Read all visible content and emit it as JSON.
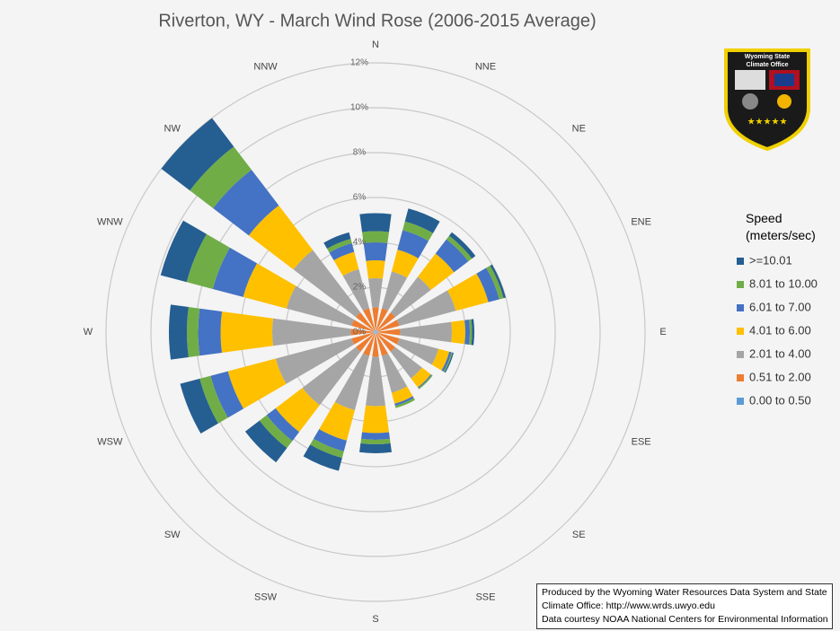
{
  "chart_data": {
    "type": "windrose",
    "title": "Riverton, WY - March Wind Rose (2006-2015 Average)",
    "categories": [
      "N",
      "NNE",
      "NE",
      "ENE",
      "E",
      "ESE",
      "SE",
      "SSE",
      "S",
      "SSW",
      "SW",
      "WSW",
      "W",
      "WNW",
      "NW",
      "NNW"
    ],
    "legend_title": "Speed (meters/sec)",
    "series": [
      {
        "name": "0.00 to 0.50",
        "color": "#5b9bd5",
        "values": [
          0.1,
          0.1,
          0.1,
          0.1,
          0.1,
          0.1,
          0.1,
          0.1,
          0.1,
          0.1,
          0.1,
          0.1,
          0.1,
          0.1,
          0.1,
          0.1
        ]
      },
      {
        "name": "0.51 to 2.00",
        "color": "#ed7d31",
        "values": [
          1.0,
          1.0,
          1.0,
          1.0,
          1.0,
          1.0,
          1.0,
          1.0,
          1.0,
          1.0,
          1.0,
          1.0,
          1.0,
          1.0,
          1.0,
          1.0
        ]
      },
      {
        "name": "2.01 to 4.00",
        "color": "#a5a5a5",
        "values": [
          1.3,
          1.7,
          2.0,
          2.6,
          2.3,
          1.8,
          1.5,
          1.7,
          2.2,
          2.5,
          3.0,
          3.5,
          3.5,
          3.0,
          3.5,
          1.8
        ]
      },
      {
        "name": "4.01 to 6.00",
        "color": "#ffc000",
        "values": [
          0.8,
          1.0,
          1.3,
          1.5,
          0.6,
          0.5,
          0.5,
          0.5,
          1.2,
          1.4,
          1.5,
          2.2,
          2.3,
          2.0,
          2.5,
          0.8
        ]
      },
      {
        "name": "6.01 to 7.00",
        "color": "#4472c4",
        "values": [
          0.8,
          0.9,
          0.8,
          0.5,
          0.2,
          0.1,
          0.05,
          0.1,
          0.3,
          0.5,
          0.5,
          0.8,
          1.0,
          1.4,
          2.0,
          0.4
        ]
      },
      {
        "name": "8.01 to 10.00",
        "color": "#70ad47",
        "values": [
          0.5,
          0.4,
          0.2,
          0.2,
          0.1,
          0.05,
          0.05,
          0.1,
          0.2,
          0.3,
          0.4,
          0.5,
          0.5,
          1.2,
          1.3,
          0.2
        ]
      },
      {
        "name": ">=10.01",
        "color": "#255e91",
        "values": [
          0.8,
          0.6,
          0.2,
          0.1,
          0.1,
          0.05,
          0.0,
          0.0,
          0.4,
          0.6,
          0.8,
          0.9,
          0.8,
          1.2,
          1.6,
          0.3
        ]
      }
    ],
    "ylim": [
      0,
      12
    ],
    "yticks": [
      {
        "value": 0,
        "label": "0%"
      },
      {
        "value": 2,
        "label": "2%"
      },
      {
        "value": 4,
        "label": "4%"
      },
      {
        "value": 6,
        "label": "6%"
      },
      {
        "value": 8,
        "label": "8%"
      },
      {
        "value": 10,
        "label": "10%"
      },
      {
        "value": 12,
        "label": "12%"
      }
    ],
    "grid": true,
    "legend_position": "right"
  },
  "logo_text": [
    "Wyoming State",
    "Climate Office"
  ],
  "credit": [
    "Produced by the Wyoming Water Resources Data System and State",
    "Climate Office: http://www.wrds.uwyo.edu",
    "Data courtesy NOAA National Centers for Environmental Information"
  ]
}
